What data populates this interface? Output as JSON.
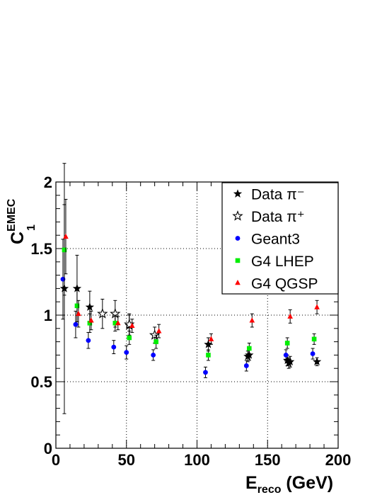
{
  "chart_data": {
    "type": "scatter",
    "xlabel": "E",
    "xlabel_sub": "reco",
    "xlabel_unit": " (GeV)",
    "ylabel": "C",
    "ylabel_sub": "1",
    "ylabel_sup": "EMEC",
    "xlim": [
      0,
      200
    ],
    "ylim": [
      0,
      2
    ],
    "x_ticks": [
      "0",
      "50",
      "100",
      "150",
      "200"
    ],
    "y_ticks": [
      "0",
      "0.5",
      "1",
      "1.5",
      "2"
    ],
    "grid": true,
    "legend_position": "top-right",
    "series": [
      {
        "name": "Data π⁻",
        "marker": "star-filled",
        "color": "#000000",
        "points": [
          {
            "x": 6,
            "y": 1.2,
            "err": 0.94
          },
          {
            "x": 15,
            "y": 1.2,
            "err": 0.25
          },
          {
            "x": 24,
            "y": 1.06,
            "err": 0.12
          },
          {
            "x": 52,
            "y": 0.92,
            "err": 0.08
          },
          {
            "x": 108,
            "y": 0.78,
            "err": 0.05
          },
          {
            "x": 136,
            "y": 0.69,
            "err": 0.04
          },
          {
            "x": 137,
            "y": 0.7,
            "err": 0.04
          },
          {
            "x": 164,
            "y": 0.66,
            "err": 0.04
          },
          {
            "x": 165,
            "y": 0.64,
            "err": 0.04
          },
          {
            "x": 166,
            "y": 0.65,
            "err": 0.04
          },
          {
            "x": 185,
            "y": 0.65,
            "err": 0.03
          }
        ]
      },
      {
        "name": "Data π⁺",
        "marker": "star-open",
        "color": "#000000",
        "points": [
          {
            "x": 33,
            "y": 1.01,
            "err": 0.11
          },
          {
            "x": 42,
            "y": 1.01,
            "err": 0.1
          },
          {
            "x": 52,
            "y": 0.93,
            "err": 0.08
          },
          {
            "x": 70,
            "y": 0.85,
            "err": 0.06
          }
        ]
      },
      {
        "name": "Geant3",
        "marker": "circle",
        "color": "#0000ff",
        "points": [
          {
            "x": 5,
            "y": 1.27,
            "err": 0.3
          },
          {
            "x": 14,
            "y": 0.93,
            "err": 0.1
          },
          {
            "x": 23,
            "y": 0.81,
            "err": 0.06
          },
          {
            "x": 41,
            "y": 0.76,
            "err": 0.05
          },
          {
            "x": 50,
            "y": 0.72,
            "err": 0.05
          },
          {
            "x": 69,
            "y": 0.7,
            "err": 0.04
          },
          {
            "x": 106,
            "y": 0.57,
            "err": 0.04
          },
          {
            "x": 135,
            "y": 0.62,
            "err": 0.04
          },
          {
            "x": 163,
            "y": 0.7,
            "err": 0.04
          },
          {
            "x": 182,
            "y": 0.71,
            "err": 0.04
          }
        ]
      },
      {
        "name": "G4 LHEP",
        "marker": "square",
        "color": "#00ee00",
        "points": [
          {
            "x": 6,
            "y": 1.49,
            "err": 0.34
          },
          {
            "x": 15,
            "y": 1.07,
            "err": 0.12
          },
          {
            "x": 24,
            "y": 0.94,
            "err": 0.07
          },
          {
            "x": 42,
            "y": 0.94,
            "err": 0.06
          },
          {
            "x": 52,
            "y": 0.83,
            "err": 0.05
          },
          {
            "x": 71,
            "y": 0.8,
            "err": 0.05
          },
          {
            "x": 108,
            "y": 0.7,
            "err": 0.04
          },
          {
            "x": 137,
            "y": 0.75,
            "err": 0.04
          },
          {
            "x": 164,
            "y": 0.79,
            "err": 0.04
          },
          {
            "x": 183,
            "y": 0.82,
            "err": 0.04
          }
        ]
      },
      {
        "name": "G4 QGSP",
        "marker": "triangle",
        "color": "#ff0000",
        "points": [
          {
            "x": 7,
            "y": 1.59,
            "err": 0.28
          },
          {
            "x": 16,
            "y": 1.01,
            "err": 0.1
          },
          {
            "x": 25,
            "y": 0.96,
            "err": 0.07
          },
          {
            "x": 44,
            "y": 0.94,
            "err": 0.05
          },
          {
            "x": 54,
            "y": 0.92,
            "err": 0.05
          },
          {
            "x": 73,
            "y": 0.88,
            "err": 0.05
          },
          {
            "x": 110,
            "y": 0.82,
            "err": 0.04
          },
          {
            "x": 139,
            "y": 0.96,
            "err": 0.05
          },
          {
            "x": 166,
            "y": 0.99,
            "err": 0.05
          },
          {
            "x": 185,
            "y": 1.06,
            "err": 0.05
          }
        ]
      }
    ]
  }
}
